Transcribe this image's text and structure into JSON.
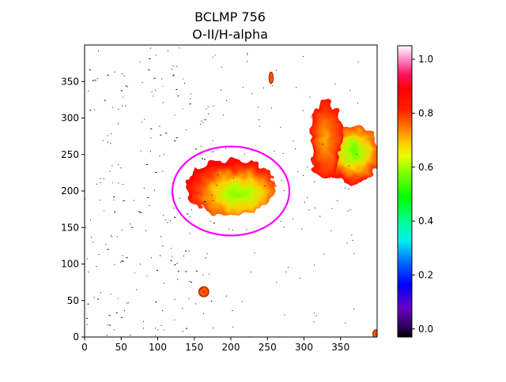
{
  "title": {
    "line1": "BCLMP 756",
    "line2": "O-II/H-alpha"
  },
  "chart_data": {
    "type": "heatmap",
    "title": "BCLMP 756 O-II/H-alpha",
    "xlabel": "",
    "ylabel": "",
    "xlim": [
      0,
      400
    ],
    "ylim": [
      0,
      400
    ],
    "xticks": [
      0,
      50,
      100,
      150,
      200,
      250,
      300,
      350
    ],
    "yticks": [
      0,
      50,
      100,
      150,
      200,
      250,
      300,
      350
    ],
    "grid": false,
    "colormap": "gist_ncar-like (black-purple-blue-cyan-green-yellow-orange-red-pink-white)",
    "colorbar": {
      "range": [
        -0.03,
        1.05
      ],
      "ticks": [
        "0.0",
        "0.2",
        "0.4",
        "0.6",
        "0.8",
        "1.0"
      ],
      "tick_values": [
        0.0,
        0.2,
        0.4,
        0.6,
        0.8,
        1.0
      ]
    },
    "aperture": {
      "shape": "ellipse",
      "center": [
        200,
        200
      ],
      "semi_axis_x": 80,
      "semi_axis_y": 61,
      "color": "#ff00ff"
    },
    "emission_regions": [
      {
        "name": "central-knot",
        "cx": 200,
        "cy": 205,
        "rx": 62,
        "ry": 38,
        "peak": 0.55
      },
      {
        "name": "ne-complex",
        "cx": 365,
        "cy": 250,
        "rx": 38,
        "ry": 40,
        "peak": 0.6
      },
      {
        "name": "ne-arc",
        "cx": 330,
        "cy": 270,
        "rx": 22,
        "ry": 55,
        "peak": 0.7
      },
      {
        "name": "point-source-sw",
        "cx": 163,
        "cy": 62,
        "rx": 7,
        "ry": 7,
        "peak": 0.85
      },
      {
        "name": "point-source-n",
        "cx": 255,
        "cy": 355,
        "rx": 3,
        "ry": 8,
        "peak": 0.7
      },
      {
        "name": "corner-source",
        "cx": 398,
        "cy": 4,
        "rx": 4,
        "ry": 6,
        "peak": 0.7
      }
    ]
  }
}
